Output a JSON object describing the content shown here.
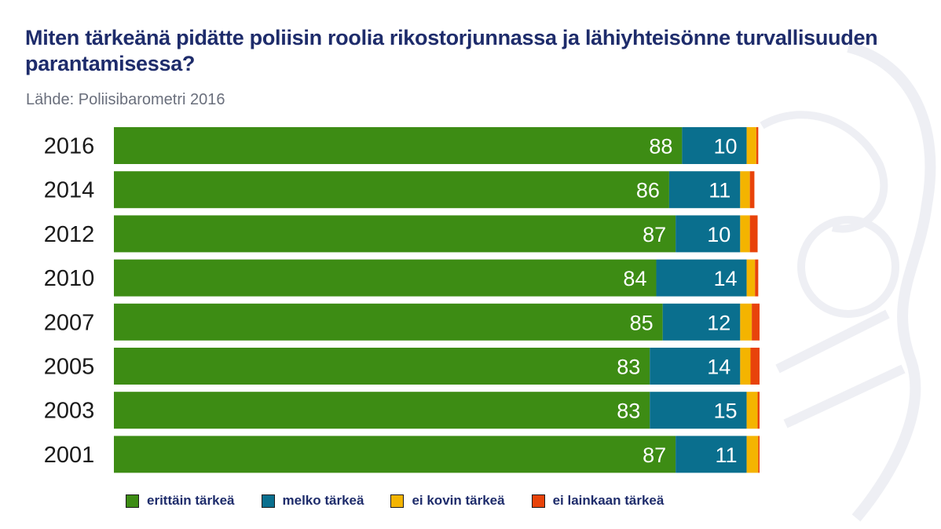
{
  "title": "Miten tärkeänä pidätte poliisin roolia rikostorjunnassa ja lähiyhteisönne turvallisuuden parantamisessa?",
  "source": "Lähde: Poliisibarometri 2016",
  "colors": {
    "erittain": "#3d8c14",
    "melko": "#0a6f8e",
    "kovin": "#f4b400",
    "lainkaan": "#e8430a",
    "title": "#1e2c6b"
  },
  "chart_data": {
    "type": "bar",
    "orientation": "horizontal",
    "stacked": true,
    "title": "Miten tärkeänä pidätte poliisin roolia rikostorjunnassa ja lähiyhteisönne turvallisuuden parantamisessa?",
    "subtitle": "Lähde: Poliisibarometri 2016",
    "xlabel": "",
    "ylabel": "",
    "xlim": [
      0,
      100
    ],
    "grid": false,
    "legend_position": "bottom",
    "categories": [
      "2016",
      "2014",
      "2012",
      "2010",
      "2007",
      "2005",
      "2003",
      "2001"
    ],
    "series": [
      {
        "name": "erittäin tärkeä",
        "color": "#3d8c14",
        "values": [
          88,
          86,
          87,
          84,
          85,
          83,
          83,
          87
        ],
        "labels": [
          "88",
          "86",
          "87",
          "84",
          "85",
          "83",
          "83",
          "87"
        ]
      },
      {
        "name": "melko tärkeä",
        "color": "#0a6f8e",
        "values": [
          10,
          11,
          10,
          14,
          12,
          14,
          15,
          11
        ],
        "labels": [
          "10",
          "11",
          "10",
          "14",
          "12",
          "14",
          "15",
          "11"
        ]
      },
      {
        "name": "ei kovin tärkeä",
        "color": "#f4b400",
        "values": [
          1.5,
          1.5,
          1.5,
          1.3,
          1.8,
          1.6,
          1.7,
          1.8
        ],
        "labels": [
          "",
          "",
          "",
          "",
          "",
          "",
          "",
          ""
        ]
      },
      {
        "name": "ei lainkaan tärkeä",
        "color": "#e8430a",
        "values": [
          0.3,
          0.7,
          1.2,
          0.5,
          1.2,
          1.4,
          0.3,
          0.2
        ],
        "labels": [
          "",
          "",
          "",
          "",
          "",
          "",
          "",
          ""
        ]
      }
    ]
  }
}
